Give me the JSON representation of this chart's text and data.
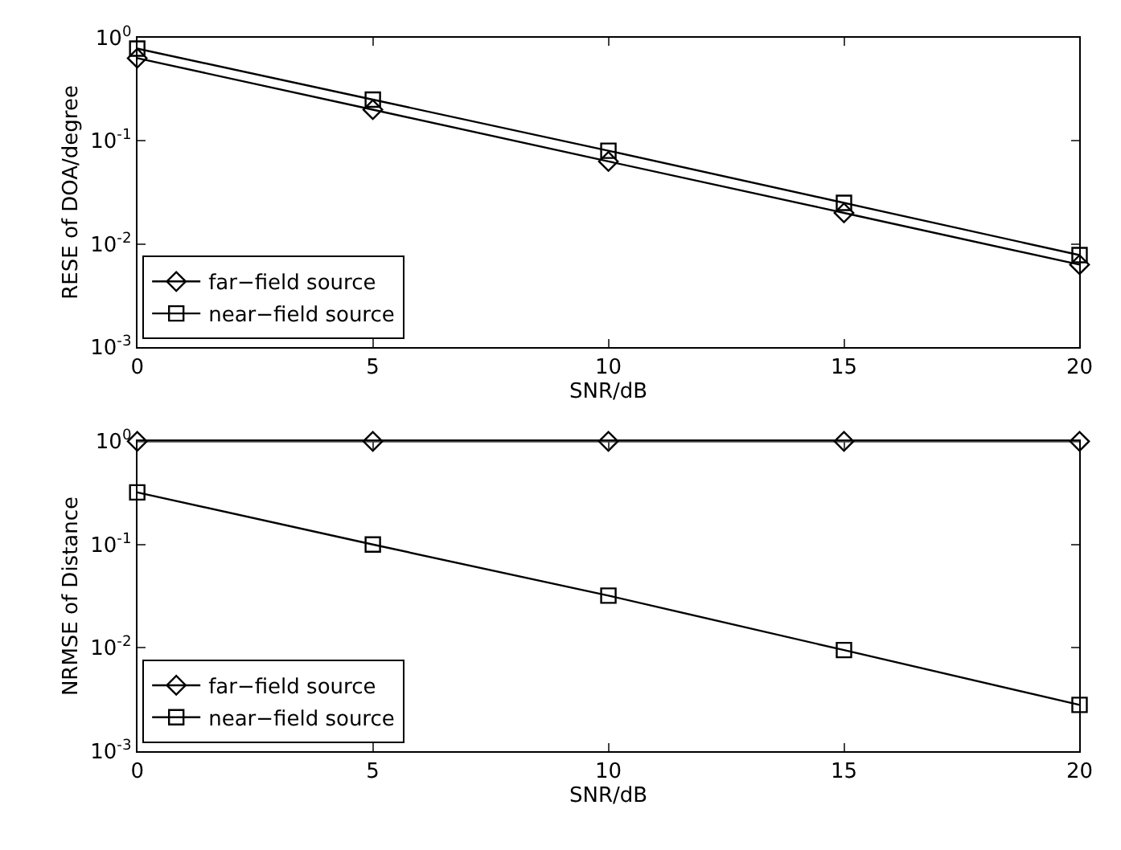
{
  "chart_data": [
    {
      "type": "line",
      "xlabel": "SNR/dB",
      "ylabel": "RESE of DOA/degree",
      "x": [
        0,
        5,
        10,
        15,
        20
      ],
      "xlim": [
        0,
        20
      ],
      "xticks": [
        0,
        5,
        10,
        15,
        20
      ],
      "ylim": [
        0.001,
        1
      ],
      "yticks": [
        {
          "value": 0.001,
          "label": "10$^{-3}$"
        },
        {
          "value": 0.01,
          "label": "10$^{-2}$"
        },
        {
          "value": 0.1,
          "label": "10$^{-1}$"
        },
        {
          "value": 1,
          "label": "10$^{0}$"
        }
      ],
      "log": true,
      "grid": false,
      "legend": "bottom left",
      "series": [
        {
          "name": "far−field source",
          "color": "#000000",
          "marker": "diamond",
          "values": [
            0.63,
            0.2,
            0.063,
            0.02,
            0.0063
          ]
        },
        {
          "name": "near−field source",
          "color": "#000000",
          "marker": "square",
          "values": [
            0.78,
            0.25,
            0.08,
            0.025,
            0.0078
          ]
        }
      ]
    },
    {
      "type": "line",
      "xlabel": "SNR/dB",
      "ylabel": "NRMSE of Distance",
      "x": [
        0,
        5,
        10,
        15,
        20
      ],
      "xlim": [
        0,
        20
      ],
      "xticks": [
        0,
        5,
        10,
        15,
        20
      ],
      "ylim": [
        0.001,
        1
      ],
      "yticks": [
        {
          "value": 0.001,
          "label": "10$^{-3}$"
        },
        {
          "value": 0.01,
          "label": "10$^{-2}$"
        },
        {
          "value": 0.1,
          "label": "10$^{-1}$"
        },
        {
          "value": 1,
          "label": "10$^{0}$"
        }
      ],
      "log": true,
      "grid": false,
      "legend": "bottom left",
      "series": [
        {
          "name": "far−field source",
          "color": "#000000",
          "marker": "diamond",
          "values": [
            1,
            1,
            1,
            1,
            1
          ]
        },
        {
          "name": "near−field source",
          "color": "#000000",
          "marker": "square",
          "values": [
            0.32,
            0.1,
            0.032,
            0.0095,
            0.0028
          ]
        }
      ]
    }
  ]
}
